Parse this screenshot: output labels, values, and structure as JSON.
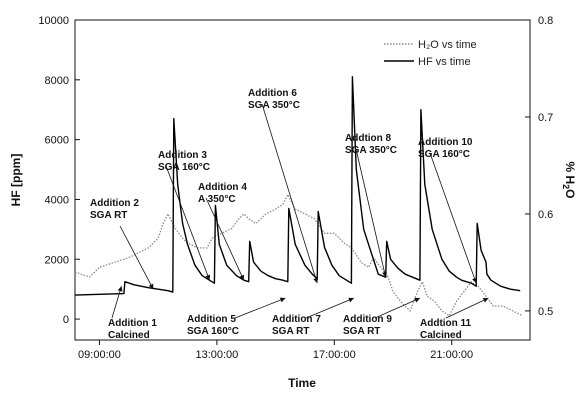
{
  "chart_data": {
    "type": "line",
    "xlabel": "Time",
    "ylabel_left": "HF [ppm]",
    "ylabel_right": "% H2O",
    "x_ticks": [
      "09:00:00",
      "13:00:00",
      "17:00:00",
      "21:00:00"
    ],
    "xlim": [
      "08:10",
      "23:40"
    ],
    "ylim_left": [
      -700,
      10000
    ],
    "ylim_right": [
      0.47,
      0.8
    ],
    "y_ticks_left": [
      0,
      2000,
      4000,
      6000,
      8000,
      10000
    ],
    "y_ticks_right": [
      0.5,
      0.6,
      0.7,
      0.8
    ],
    "y_tick_labels_right": [
      "0.5",
      "0.6",
      "0.7",
      "0.8"
    ],
    "grid": false,
    "legend_position": "top-right",
    "series": [
      {
        "name": "H2O vs time",
        "axis": "right",
        "style": "dotted-gray",
        "x": [
          "08:10",
          "08:40",
          "09:00",
          "09:30",
          "10:00",
          "10:40",
          "11:00",
          "11:10",
          "11:20",
          "11:35",
          "11:50",
          "12:00",
          "12:20",
          "12:40",
          "12:50",
          "13:10",
          "13:30",
          "13:45",
          "13:55",
          "14:05",
          "14:20",
          "14:40",
          "15:00",
          "15:15",
          "15:25",
          "15:40",
          "16:00",
          "16:20",
          "16:40",
          "17:00",
          "17:20",
          "17:35",
          "17:42",
          "17:55",
          "18:10",
          "18:20",
          "18:35",
          "18:50",
          "19:00",
          "19:15",
          "19:25",
          "19:35",
          "19:50",
          "20:00",
          "20:10",
          "20:25",
          "20:40",
          "20:55",
          "21:10",
          "21:25",
          "21:40",
          "21:55",
          "22:10",
          "22:25",
          "22:45",
          "23:05",
          "23:25"
        ],
        "values": [
          0.54,
          0.535,
          0.545,
          0.55,
          0.555,
          0.565,
          0.575,
          0.59,
          0.6,
          0.585,
          0.575,
          0.57,
          0.565,
          0.565,
          0.575,
          0.58,
          0.585,
          0.595,
          0.6,
          0.595,
          0.59,
          0.6,
          0.605,
          0.61,
          0.62,
          0.605,
          0.6,
          0.595,
          0.58,
          0.58,
          0.57,
          0.565,
          0.56,
          0.55,
          0.545,
          0.555,
          0.545,
          0.535,
          0.52,
          0.51,
          0.505,
          0.5,
          0.52,
          0.53,
          0.515,
          0.51,
          0.5,
          0.495,
          0.51,
          0.52,
          0.53,
          0.525,
          0.515,
          0.505,
          0.505,
          0.5,
          0.495
        ]
      },
      {
        "name": "HF vs time",
        "axis": "left",
        "style": "solid-black",
        "x": [
          "08:10",
          "09:50",
          "09:52",
          "10:10",
          "10:40",
          "11:00",
          "11:20",
          "11:30",
          "11:32",
          "11:40",
          "11:50",
          "12:00",
          "12:15",
          "12:30",
          "12:45",
          "12:55",
          "12:57",
          "13:05",
          "13:20",
          "13:40",
          "13:55",
          "14:05",
          "14:07",
          "14:15",
          "14:30",
          "14:45",
          "15:00",
          "15:15",
          "15:25",
          "15:27",
          "15:40",
          "16:00",
          "16:15",
          "16:25",
          "16:27",
          "16:40",
          "16:55",
          "17:10",
          "17:25",
          "17:35",
          "17:37",
          "17:45",
          "18:00",
          "18:20",
          "18:30",
          "18:45",
          "18:47",
          "18:55",
          "19:10",
          "19:25",
          "19:40",
          "19:55",
          "19:57",
          "20:05",
          "20:20",
          "20:40",
          "20:55",
          "21:10",
          "21:20",
          "21:40",
          "21:50",
          "21:52",
          "22:00",
          "22:10",
          "22:12",
          "22:20",
          "22:40",
          "23:00",
          "23:20"
        ],
        "values": [
          800,
          850,
          1250,
          1150,
          1050,
          1000,
          950,
          900,
          6700,
          4500,
          3200,
          2500,
          1800,
          1450,
          1300,
          1200,
          3800,
          2500,
          1800,
          1450,
          1300,
          1250,
          2600,
          1900,
          1600,
          1450,
          1350,
          1300,
          1250,
          3700,
          2500,
          1800,
          1500,
          1350,
          3600,
          2400,
          1800,
          1450,
          1300,
          1200,
          8100,
          5000,
          3000,
          2000,
          1500,
          1400,
          2600,
          2000,
          1700,
          1500,
          1400,
          1300,
          7000,
          4500,
          3000,
          2000,
          1600,
          1400,
          1300,
          1200,
          1100,
          3200,
          2300,
          1900,
          1500,
          1300,
          1100,
          1000,
          950
        ]
      }
    ],
    "annotations": [
      {
        "lines": [
          "Addition 1",
          "Calcined"
        ],
        "target": [
          "09:45",
          1100
        ]
      },
      {
        "lines": [
          "Addition 2",
          "SGA RT"
        ],
        "target": [
          "10:50",
          1000
        ]
      },
      {
        "lines": [
          "Addition 3",
          "SGA 160°C"
        ],
        "target": [
          "12:45",
          1300
        ]
      },
      {
        "lines": [
          "Addition 4",
          "A 350°C"
        ],
        "target": [
          "13:55",
          1300
        ]
      },
      {
        "lines": [
          "Addition 5",
          "SGA 160°C"
        ],
        "target": [
          "15:20",
          700
        ]
      },
      {
        "lines": [
          "Addition 6",
          "SGA 350°C"
        ],
        "target": [
          "16:25",
          1200
        ]
      },
      {
        "lines": [
          "Addition 7",
          "SGA RT"
        ],
        "target": [
          "17:40",
          700
        ]
      },
      {
        "lines": [
          "Addtion 8",
          "SGA 350°C"
        ],
        "target": [
          "18:45",
          1400
        ]
      },
      {
        "lines": [
          "Addition 9",
          "SGA RT"
        ],
        "target": [
          "19:55",
          700
        ]
      },
      {
        "lines": [
          "Addition 10",
          "SGA 160°C"
        ],
        "target": [
          "21:50",
          1200
        ]
      },
      {
        "lines": [
          "Addtion 11",
          "Calcined"
        ],
        "target": [
          "22:15",
          700
        ]
      }
    ],
    "legend": [
      {
        "label": "H₂O vs time",
        "style": "dotted-gray"
      },
      {
        "label": "HF vs time",
        "style": "solid-black"
      }
    ]
  }
}
